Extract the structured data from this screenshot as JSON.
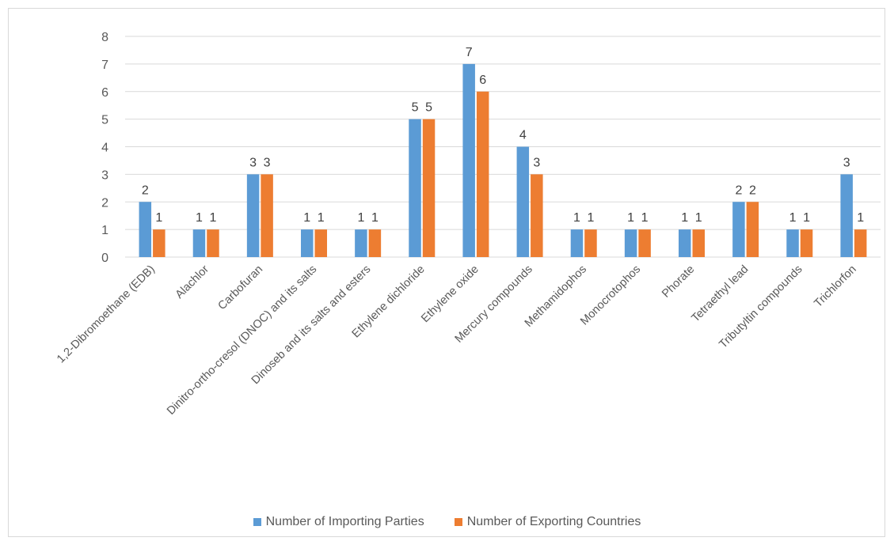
{
  "chart_data": {
    "type": "bar",
    "categories": [
      "1,2-Dibromoethane (EDB)",
      "Alachlor",
      "Carbofuran",
      "Dinitro-ortho-cresol (DNOC) and its salts",
      "Dinoseb and its salts and esters",
      "Ethylene dichloride",
      "Ethylene oxide",
      "Mercury compounds",
      "Methamidophos",
      "Monocrotophos",
      "Phorate",
      "Tetraethyl lead",
      "Tributyltin compounds",
      "Trichlorfon"
    ],
    "series": [
      {
        "name": "Number of Importing Parties",
        "color": "#5b9bd5",
        "values": [
          2,
          1,
          3,
          1,
          1,
          5,
          7,
          4,
          1,
          1,
          1,
          2,
          1,
          3
        ]
      },
      {
        "name": "Number of Exporting Countries",
        "color": "#ed7d31",
        "values": [
          1,
          1,
          3,
          1,
          1,
          5,
          6,
          3,
          1,
          1,
          1,
          2,
          1,
          1
        ]
      }
    ],
    "ylim": [
      0,
      8
    ],
    "yticks": [
      "0",
      "1",
      "2",
      "3",
      "4",
      "5",
      "6",
      "7",
      "8"
    ],
    "grid": true,
    "legend_position": "bottom",
    "data_labels": true
  }
}
